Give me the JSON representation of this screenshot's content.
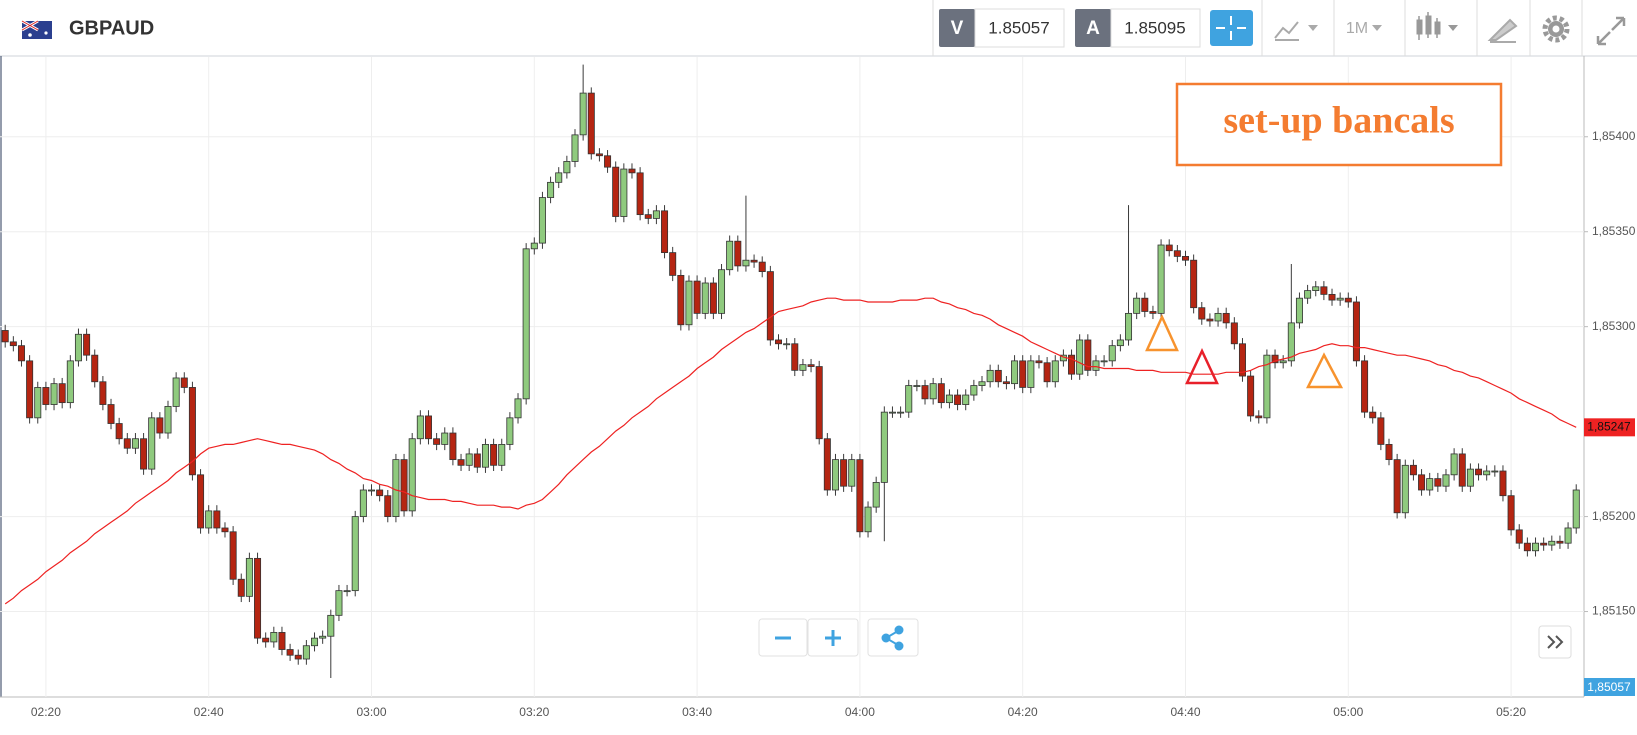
{
  "header": {
    "symbol": "GBPAUD",
    "bid_key": "V",
    "bid": 1.85057,
    "ask_key": "A",
    "ask": 1.85095,
    "timeframe": "1M"
  },
  "chart_data": {
    "type": "candlestick",
    "annotation": "set-up bancals",
    "categories": [
      null,
      null,
      null,
      null,
      null,
      "02:20",
      null,
      null,
      null,
      null,
      null,
      null,
      null,
      null,
      null,
      null,
      null,
      null,
      null,
      null,
      null,
      null,
      null,
      null,
      null,
      "02:40",
      null,
      null,
      null,
      null,
      null,
      null,
      null,
      null,
      null,
      null,
      null,
      null,
      null,
      null,
      null,
      null,
      null,
      null,
      null,
      "03:00",
      null,
      null,
      null,
      null,
      null,
      null,
      null,
      null,
      null,
      null,
      null,
      null,
      null,
      null,
      null,
      null,
      null,
      null,
      null,
      "03:20",
      null,
      null,
      null,
      null,
      null,
      null,
      null,
      null,
      null,
      null,
      null,
      null,
      null,
      null,
      null,
      null,
      null,
      null,
      null,
      "03:40",
      null,
      null,
      null,
      null,
      null,
      null,
      null,
      null,
      null,
      null,
      null,
      null,
      null,
      null,
      null,
      null,
      null,
      null,
      null,
      "04:00",
      null,
      null,
      null,
      null,
      null,
      null,
      null,
      null,
      null,
      null,
      null,
      null,
      null,
      null,
      null,
      null,
      null,
      null,
      null,
      "04:20",
      null,
      null,
      null,
      null,
      null,
      null,
      null,
      null,
      null,
      null,
      null,
      null,
      null,
      null,
      null,
      null,
      null,
      null,
      null,
      "04:40",
      null,
      null,
      null,
      null,
      null,
      null,
      null,
      null,
      null,
      null,
      null,
      null,
      null,
      null,
      null,
      null,
      null,
      null,
      null,
      "05:00",
      null,
      null,
      null,
      null,
      null,
      null,
      null,
      null,
      null,
      null,
      null,
      null,
      null,
      null,
      null,
      null,
      null,
      null,
      null,
      "05:20",
      null,
      null,
      null,
      null,
      null,
      null,
      null,
      null
    ],
    "open": [
      1.85298,
      1.85292,
      1.8529,
      1.85282,
      1.85252,
      1.85268,
      1.85259,
      1.8527,
      1.8526,
      1.85282,
      1.85296,
      1.85285,
      1.85271,
      1.85259,
      1.85249,
      1.85241,
      1.85236,
      1.85241,
      1.85225,
      1.85252,
      1.85244,
      1.85258,
      1.85273,
      1.85268,
      1.85222,
      1.85194,
      1.85203,
      1.85194,
      1.85192,
      1.85167,
      1.85158,
      1.85178,
      1.85136,
      1.85134,
      1.85139,
      1.8513,
      1.85127,
      1.85125,
      1.85132,
      1.85136,
      1.85137,
      1.85148,
      1.85161,
      1.85161,
      1.852,
      1.85214,
      1.85214,
      1.85211,
      1.852,
      1.8523,
      1.85203,
      1.85241,
      1.85253,
      1.85241,
      1.85238,
      1.85244,
      1.8523,
      1.85227,
      1.85233,
      1.85226,
      1.85238,
      1.85227,
      1.85238,
      1.85252,
      1.85262,
      1.85341,
      1.85344,
      1.85368,
      1.85376,
      1.85381,
      1.85387,
      1.85401,
      1.85423,
      1.85391,
      1.8539,
      1.85384,
      1.85358,
      1.85383,
      1.85381,
      1.85359,
      1.85357,
      1.85361,
      1.85339,
      1.85327,
      1.85301,
      1.85324,
      1.85307,
      1.85323,
      1.85307,
      1.8533,
      1.85345,
      1.85332,
      1.85335,
      1.85334,
      1.85329,
      1.85293,
      1.85291,
      1.85291,
      1.85277,
      1.8528,
      1.85279,
      1.85241,
      1.85214,
      1.8523,
      1.85216,
      1.8523,
      1.85192,
      1.85205,
      1.85218,
      1.85255,
      1.85255,
      1.85255,
      1.85269,
      1.85269,
      1.85262,
      1.8527,
      1.8526,
      1.85264,
      1.85259,
      1.85264,
      1.85269,
      1.85271,
      1.85277,
      1.85271,
      1.8527,
      1.85282,
      1.85268,
      1.85282,
      1.85281,
      1.85271,
      1.85282,
      1.85285,
      1.85275,
      1.85293,
      1.85277,
      1.85282,
      1.85282,
      1.8529,
      1.85293,
      1.85307,
      1.85315,
      1.85308,
      1.85307,
      1.85343,
      1.8534,
      1.85337,
      1.85335,
      1.8531,
      1.85304,
      1.85303,
      1.85307,
      1.85302,
      1.85291,
      1.85274,
      1.85253,
      1.85252,
      1.85285,
      1.85281,
      1.85282,
      1.85302,
      1.85315,
      1.85319,
      1.85321,
      1.85317,
      1.85314,
      1.85315,
      1.85313,
      1.85282,
      1.85255,
      1.85252,
      1.85238,
      1.8523,
      1.85202,
      1.85227,
      1.85222,
      1.85214,
      1.8522,
      1.85216,
      1.85222,
      1.85233,
      1.85216,
      1.85225,
      1.85222,
      1.85224,
      1.85224,
      1.85211,
      1.85193,
      1.85186,
      1.85182,
      1.85186,
      1.85185,
      1.85187,
      1.85186,
      1.85194
    ],
    "close": [
      1.85292,
      1.8529,
      1.85282,
      1.85252,
      1.85268,
      1.85259,
      1.8527,
      1.8526,
      1.85282,
      1.85296,
      1.85285,
      1.85271,
      1.85259,
      1.85249,
      1.85241,
      1.85236,
      1.85241,
      1.85225,
      1.85252,
      1.85244,
      1.85258,
      1.85273,
      1.85268,
      1.85222,
      1.85194,
      1.85203,
      1.85194,
      1.85192,
      1.85167,
      1.85158,
      1.85178,
      1.85136,
      1.85134,
      1.85139,
      1.8513,
      1.85127,
      1.85125,
      1.85132,
      1.85136,
      1.85137,
      1.85148,
      1.85161,
      1.85161,
      1.852,
      1.85214,
      1.85214,
      1.85211,
      1.852,
      1.8523,
      1.85203,
      1.85241,
      1.85253,
      1.85241,
      1.85238,
      1.85244,
      1.8523,
      1.85227,
      1.85233,
      1.85226,
      1.85238,
      1.85227,
      1.85238,
      1.85252,
      1.85262,
      1.85341,
      1.85344,
      1.85368,
      1.85376,
      1.85381,
      1.85387,
      1.85401,
      1.85423,
      1.85391,
      1.8539,
      1.85384,
      1.85358,
      1.85383,
      1.85381,
      1.85359,
      1.85357,
      1.85361,
      1.85339,
      1.85327,
      1.85301,
      1.85324,
      1.85307,
      1.85323,
      1.85307,
      1.8533,
      1.85345,
      1.85332,
      1.85335,
      1.85334,
      1.85329,
      1.85293,
      1.85291,
      1.85291,
      1.85277,
      1.8528,
      1.85279,
      1.85241,
      1.85214,
      1.8523,
      1.85216,
      1.8523,
      1.85192,
      1.85205,
      1.85218,
      1.85255,
      1.85255,
      1.85255,
      1.85269,
      1.85269,
      1.85262,
      1.8527,
      1.8526,
      1.85264,
      1.85259,
      1.85264,
      1.85269,
      1.85271,
      1.85277,
      1.85271,
      1.8527,
      1.85282,
      1.85268,
      1.85282,
      1.85281,
      1.85271,
      1.85282,
      1.85285,
      1.85275,
      1.85293,
      1.85277,
      1.85282,
      1.85282,
      1.8529,
      1.85293,
      1.85307,
      1.85315,
      1.85308,
      1.85307,
      1.85343,
      1.8534,
      1.85337,
      1.85335,
      1.8531,
      1.85304,
      1.85303,
      1.85307,
      1.85302,
      1.85291,
      1.85274,
      1.85253,
      1.85252,
      1.85285,
      1.85281,
      1.85282,
      1.85302,
      1.85315,
      1.85319,
      1.85321,
      1.85317,
      1.85314,
      1.85315,
      1.85313,
      1.85282,
      1.85255,
      1.85252,
      1.85238,
      1.8523,
      1.85202,
      1.85227,
      1.85222,
      1.85214,
      1.8522,
      1.85216,
      1.85222,
      1.85233,
      1.85216,
      1.85225,
      1.85222,
      1.85224,
      1.85224,
      1.85211,
      1.85193,
      1.85186,
      1.85182,
      1.85186,
      1.85185,
      1.85187,
      1.85186,
      1.85194,
      1.85214
    ],
    "high": [
      1.85301,
      1.85295,
      1.85293,
      1.85285,
      1.85271,
      1.85271,
      1.85273,
      1.85273,
      1.85285,
      1.85299,
      1.85299,
      1.85288,
      1.85274,
      1.85262,
      1.85252,
      1.85244,
      1.85244,
      1.85244,
      1.85255,
      1.85255,
      1.85261,
      1.85276,
      1.85276,
      1.85271,
      1.85225,
      1.85206,
      1.85206,
      1.85197,
      1.85195,
      1.8517,
      1.85181,
      1.85181,
      1.85139,
      1.85142,
      1.85142,
      1.85133,
      1.8513,
      1.85135,
      1.85139,
      1.8514,
      1.85151,
      1.85164,
      1.85164,
      1.85203,
      1.85217,
      1.85217,
      1.85217,
      1.85214,
      1.85233,
      1.85233,
      1.85244,
      1.85256,
      1.85256,
      1.85244,
      1.85247,
      1.85247,
      1.85233,
      1.85236,
      1.85236,
      1.85241,
      1.85241,
      1.85241,
      1.85255,
      1.85265,
      1.85344,
      1.85347,
      1.85371,
      1.85379,
      1.85384,
      1.8539,
      1.85404,
      1.85438,
      1.85426,
      1.85394,
      1.85393,
      1.85387,
      1.85386,
      1.85386,
      1.85384,
      1.85362,
      1.85364,
      1.85364,
      1.85342,
      1.8533,
      1.85327,
      1.85327,
      1.85326,
      1.85326,
      1.85333,
      1.85348,
      1.85348,
      1.85369,
      1.85338,
      1.85337,
      1.85332,
      1.85296,
      1.85294,
      1.85294,
      1.85283,
      1.85283,
      1.85282,
      1.85244,
      1.85233,
      1.85233,
      1.85233,
      1.85233,
      1.85208,
      1.85221,
      1.85258,
      1.85258,
      1.85258,
      1.85272,
      1.85272,
      1.85272,
      1.85273,
      1.85273,
      1.85267,
      1.85267,
      1.85267,
      1.85272,
      1.85274,
      1.8528,
      1.8528,
      1.85274,
      1.85285,
      1.85285,
      1.85285,
      1.85285,
      1.85284,
      1.85285,
      1.85288,
      1.85288,
      1.85296,
      1.85296,
      1.85285,
      1.85285,
      1.85293,
      1.85296,
      1.85364,
      1.85318,
      1.85318,
      1.85311,
      1.85346,
      1.85346,
      1.85343,
      1.8534,
      1.85338,
      1.85313,
      1.85307,
      1.8531,
      1.8531,
      1.85305,
      1.85294,
      1.85277,
      1.85256,
      1.85288,
      1.85288,
      1.85285,
      1.85333,
      1.85318,
      1.85322,
      1.85324,
      1.85324,
      1.8532,
      1.85318,
      1.85318,
      1.85316,
      1.85285,
      1.85258,
      1.85255,
      1.85241,
      1.85233,
      1.8523,
      1.8523,
      1.85225,
      1.85223,
      1.85223,
      1.85225,
      1.85236,
      1.85236,
      1.85228,
      1.85228,
      1.85227,
      1.85227,
      1.85227,
      1.85214,
      1.85196,
      1.85189,
      1.85189,
      1.85189,
      1.8519,
      1.8519,
      1.85197,
      1.85217
    ],
    "low": [
      1.85289,
      1.85287,
      1.85279,
      1.85249,
      1.85249,
      1.85256,
      1.85256,
      1.85257,
      1.85257,
      1.85279,
      1.85282,
      1.85268,
      1.85256,
      1.85246,
      1.85238,
      1.85233,
      1.85233,
      1.85222,
      1.85222,
      1.85241,
      1.85241,
      1.85255,
      1.85265,
      1.85219,
      1.85191,
      1.85191,
      1.85191,
      1.85189,
      1.85164,
      1.85155,
      1.85155,
      1.85133,
      1.85131,
      1.85131,
      1.85127,
      1.85124,
      1.85122,
      1.85122,
      1.85129,
      1.85133,
      1.85115,
      1.85145,
      1.85158,
      1.85158,
      1.85197,
      1.85211,
      1.85208,
      1.85197,
      1.85197,
      1.852,
      1.852,
      1.85238,
      1.85238,
      1.85235,
      1.85235,
      1.85227,
      1.85224,
      1.85224,
      1.85223,
      1.85223,
      1.85224,
      1.85224,
      1.85235,
      1.85249,
      1.85259,
      1.85338,
      1.85341,
      1.85365,
      1.85373,
      1.85378,
      1.85384,
      1.85398,
      1.85388,
      1.85387,
      1.85381,
      1.85355,
      1.85355,
      1.85378,
      1.85356,
      1.85354,
      1.85354,
      1.85336,
      1.85324,
      1.85298,
      1.85298,
      1.85304,
      1.85304,
      1.85304,
      1.85304,
      1.85327,
      1.85329,
      1.85329,
      1.85331,
      1.85326,
      1.8529,
      1.85288,
      1.85288,
      1.85274,
      1.85274,
      1.85276,
      1.85238,
      1.85211,
      1.85211,
      1.85213,
      1.85213,
      1.85189,
      1.85189,
      1.85202,
      1.85187,
      1.85252,
      1.85252,
      1.85252,
      1.85266,
      1.85259,
      1.85259,
      1.85257,
      1.85257,
      1.85256,
      1.85256,
      1.85261,
      1.85266,
      1.85268,
      1.85268,
      1.85267,
      1.85267,
      1.85265,
      1.85265,
      1.85278,
      1.85268,
      1.85268,
      1.85279,
      1.85272,
      1.85272,
      1.85274,
      1.85274,
      1.85279,
      1.85279,
      1.85287,
      1.8529,
      1.85304,
      1.85305,
      1.85304,
      1.85304,
      1.85337,
      1.85334,
      1.85332,
      1.85307,
      1.85301,
      1.853,
      1.853,
      1.85299,
      1.85288,
      1.85271,
      1.8525,
      1.85249,
      1.85249,
      1.85278,
      1.85278,
      1.85279,
      1.85299,
      1.85312,
      1.85316,
      1.85314,
      1.85311,
      1.85311,
      1.8531,
      1.85279,
      1.85252,
      1.85249,
      1.85235,
      1.85227,
      1.85199,
      1.85199,
      1.85219,
      1.85211,
      1.85211,
      1.85213,
      1.85213,
      1.85219,
      1.85213,
      1.85213,
      1.85219,
      1.85219,
      1.85221,
      1.85208,
      1.8519,
      1.85183,
      1.85179,
      1.85179,
      1.85182,
      1.85182,
      1.85183,
      1.85183,
      1.85191
    ],
    "up_color": "#8fca7e",
    "down_color": "#b52512",
    "line": {
      "color": "#ee2222",
      "tag_label": "1,85247",
      "values": [
        1.85154,
        1.85157,
        1.85161,
        1.85164,
        1.85167,
        1.85171,
        1.85174,
        1.85177,
        1.85181,
        1.85184,
        1.85187,
        1.85191,
        1.85194,
        1.85197,
        1.852,
        1.85203,
        1.85207,
        1.8521,
        1.85213,
        1.85216,
        1.85219,
        1.85223,
        1.85226,
        1.85229,
        1.85233,
        1.85236,
        1.85237,
        1.85238,
        1.85238,
        1.85239,
        1.8524,
        1.85241,
        1.8524,
        1.85239,
        1.85238,
        1.85238,
        1.85237,
        1.85236,
        1.85235,
        1.85233,
        1.8523,
        1.85228,
        1.85225,
        1.85223,
        1.8522,
        1.85219,
        1.85217,
        1.85216,
        1.85214,
        1.85213,
        1.85211,
        1.8521,
        1.85209,
        1.85209,
        1.85209,
        1.85208,
        1.85208,
        1.85207,
        1.85206,
        1.85206,
        1.85206,
        1.85205,
        1.85205,
        1.85204,
        1.85206,
        1.85207,
        1.85209,
        1.85213,
        1.85217,
        1.85222,
        1.85226,
        1.8523,
        1.85234,
        1.85237,
        1.85241,
        1.85245,
        1.85248,
        1.85252,
        1.85255,
        1.85258,
        1.85262,
        1.85265,
        1.85268,
        1.85271,
        1.85274,
        1.85278,
        1.85281,
        1.85284,
        1.85288,
        1.85291,
        1.85294,
        1.85297,
        1.85299,
        1.85302,
        1.85305,
        1.85308,
        1.85309,
        1.8531,
        1.85311,
        1.85313,
        1.85314,
        1.85315,
        1.85315,
        1.85314,
        1.85314,
        1.85314,
        1.85313,
        1.85313,
        1.85313,
        1.85313,
        1.85314,
        1.85314,
        1.85314,
        1.85315,
        1.85315,
        1.85313,
        1.85312,
        1.8531,
        1.85309,
        1.85307,
        1.85306,
        1.85304,
        1.85301,
        1.85299,
        1.85297,
        1.85295,
        1.85292,
        1.8529,
        1.85288,
        1.85286,
        1.85284,
        1.85283,
        1.85281,
        1.85279,
        1.85279,
        1.85278,
        1.85278,
        1.85278,
        1.85278,
        1.85277,
        1.85277,
        1.85277,
        1.85276,
        1.85276,
        1.85276,
        1.85276,
        1.85275,
        1.85275,
        1.85275,
        1.85275,
        1.85276,
        1.85276,
        1.85276,
        1.85277,
        1.85279,
        1.8528,
        1.85282,
        1.85283,
        1.85284,
        1.85286,
        1.85287,
        1.85288,
        1.8529,
        1.85291,
        1.8529,
        1.8529,
        1.85289,
        1.85289,
        1.85288,
        1.85287,
        1.85286,
        1.85285,
        1.85285,
        1.85284,
        1.85283,
        1.85282,
        1.8528,
        1.85279,
        1.85277,
        1.85276,
        1.85274,
        1.85273,
        1.85271,
        1.85269,
        1.85267,
        1.85265,
        1.85262,
        1.8526,
        1.85258,
        1.85256,
        1.85254,
        1.85251,
        1.85249,
        1.85247
      ]
    },
    "bid_tag": "1,85057",
    "ylim": [
      1.85105,
      1.85442
    ],
    "yticks": [
      {
        "value": 1.8515,
        "label": "1,85150"
      },
      {
        "value": 1.852,
        "label": "1,85200"
      },
      {
        "value": 1.853,
        "label": "1,85300"
      },
      {
        "value": 1.8535,
        "label": "1,85350"
      },
      {
        "value": 1.854,
        "label": "1,85400"
      }
    ],
    "grid": true
  }
}
